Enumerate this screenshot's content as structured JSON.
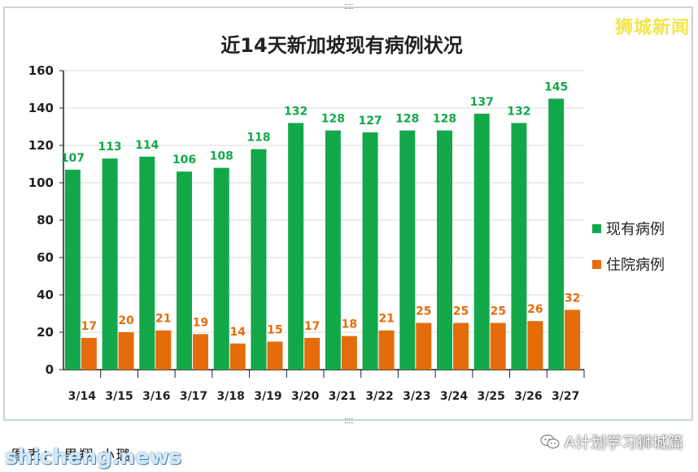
{
  "brand": "狮城新闻",
  "caption": "图表： 男翔 小璐",
  "site": "shicheng.news",
  "wechat_account": "A计划学习狮城篇",
  "icons": {
    "wechat": "wechat-icon"
  },
  "chart_data": {
    "type": "bar",
    "title": "近14天新加坡现有病例状况",
    "xlabel": "",
    "ylabel": "",
    "ylim": [
      0,
      160
    ],
    "yticks": [
      0,
      20,
      40,
      60,
      80,
      100,
      120,
      140,
      160
    ],
    "grid": true,
    "legend_position": "right",
    "categories": [
      "3/14",
      "3/15",
      "3/16",
      "3/17",
      "3/18",
      "3/19",
      "3/20",
      "3/21",
      "3/22",
      "3/23",
      "3/24",
      "3/25",
      "3/26",
      "3/27"
    ],
    "series": [
      {
        "name": "现有病例",
        "color": "#12a84a",
        "values": [
          107,
          113,
          114,
          106,
          108,
          118,
          132,
          128,
          127,
          128,
          128,
          137,
          132,
          145
        ]
      },
      {
        "name": "住院病例",
        "color": "#e46c0a",
        "values": [
          17,
          20,
          21,
          19,
          14,
          15,
          17,
          18,
          21,
          25,
          25,
          25,
          26,
          32
        ]
      }
    ]
  }
}
